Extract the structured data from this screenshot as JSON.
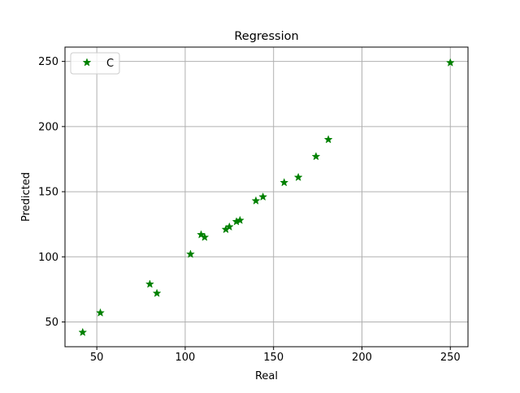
{
  "chart_data": {
    "type": "scatter",
    "title": "Regression",
    "xlabel": "Real",
    "ylabel": "Predicted",
    "xlim": [
      32,
      260
    ],
    "ylim": [
      31,
      261
    ],
    "xticks": [
      50,
      100,
      150,
      200,
      250
    ],
    "yticks": [
      50,
      100,
      150,
      200,
      250
    ],
    "xtick_labels": [
      "50",
      "100",
      "150",
      "200",
      "250"
    ],
    "ytick_labels": [
      "50",
      "100",
      "150",
      "200",
      "250"
    ],
    "grid": true,
    "legend_position": "top-left",
    "marker": "star",
    "series": [
      {
        "name": "C",
        "color": "#008000",
        "points": [
          {
            "x": 42,
            "y": 42
          },
          {
            "x": 52,
            "y": 57
          },
          {
            "x": 80,
            "y": 79
          },
          {
            "x": 84,
            "y": 72
          },
          {
            "x": 103,
            "y": 102
          },
          {
            "x": 109,
            "y": 117
          },
          {
            "x": 111,
            "y": 115
          },
          {
            "x": 123,
            "y": 121
          },
          {
            "x": 125,
            "y": 123
          },
          {
            "x": 129,
            "y": 127
          },
          {
            "x": 131,
            "y": 128
          },
          {
            "x": 140,
            "y": 143
          },
          {
            "x": 144,
            "y": 146
          },
          {
            "x": 156,
            "y": 157
          },
          {
            "x": 164,
            "y": 161
          },
          {
            "x": 174,
            "y": 177
          },
          {
            "x": 181,
            "y": 190
          },
          {
            "x": 250,
            "y": 249
          }
        ]
      }
    ]
  }
}
